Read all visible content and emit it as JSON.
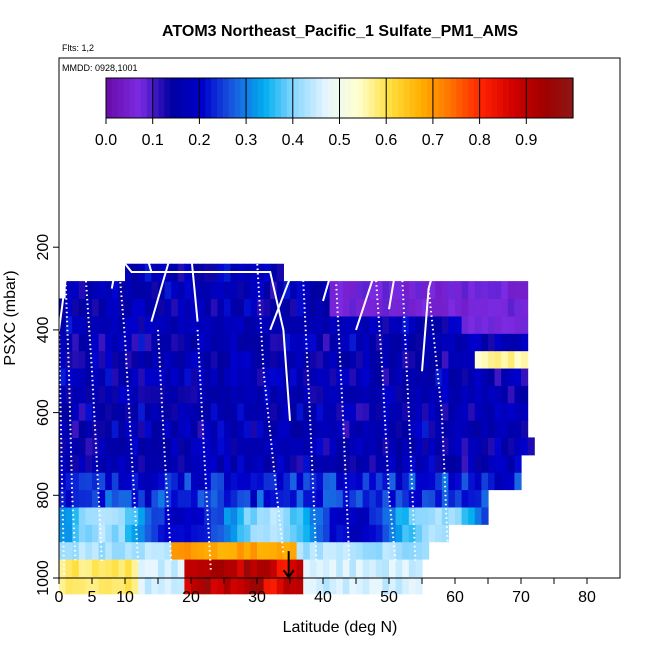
{
  "chart_data": {
    "type": "heatmap",
    "title": "ATOM3 Northeast_Pacific_1 Sulfate_PM1_AMS",
    "annotations": [
      "Flts: 1,2",
      "MMDD: 0928,1001"
    ],
    "xlabel": "Latitude (deg N)",
    "ylabel": "PSXC (mbar)",
    "xlim": [
      0,
      85
    ],
    "ylim": [
      1000,
      70
    ],
    "x_ticks": [
      0,
      5,
      10,
      20,
      30,
      40,
      50,
      60,
      70,
      80
    ],
    "x_minor_ticks": [
      15,
      25,
      35,
      45,
      55,
      65,
      75
    ],
    "y_ticks": [
      200,
      400,
      600,
      800,
      1000
    ],
    "colorbar": {
      "range": [
        0,
        1
      ],
      "ticks": [
        "0.0",
        "0.1",
        "0.2",
        "0.3",
        "0.4",
        "0.5",
        "0.6",
        "0.7",
        "0.8",
        "0.9"
      ],
      "colors": [
        "#6A0DAD",
        "#7B2BE2",
        "#0000A0",
        "#0000CD",
        "#1A5CE0",
        "#00AEEF",
        "#8FD8FF",
        "#E6F6FF",
        "#FFFFD0",
        "#FFE040",
        "#FFB000",
        "#FF7000",
        "#FF2000",
        "#D00000",
        "#A00000",
        "#8B1A1A"
      ]
    },
    "marker": {
      "latitude": 34.8,
      "pressure": 960,
      "symbol": "down-arrow"
    },
    "grid": false
  }
}
